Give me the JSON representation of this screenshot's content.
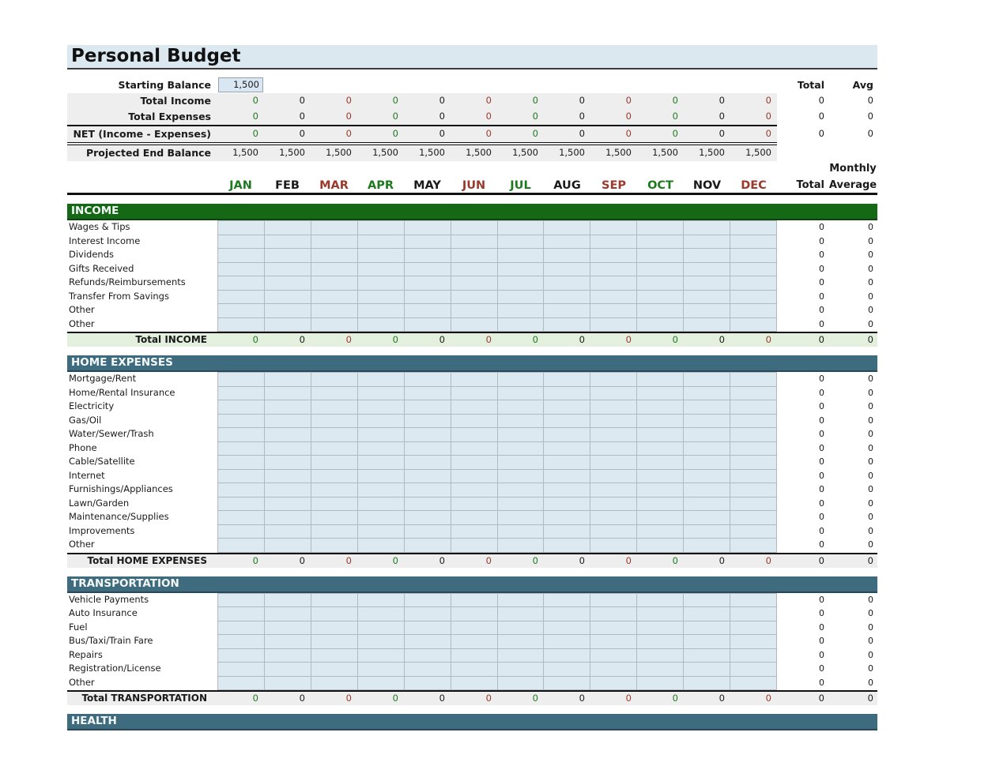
{
  "title": "Personal Budget",
  "colors": {
    "green_text": "#1f7a1f",
    "red_text": "#9a392c",
    "black_text": "#1a1a1a",
    "income_bar": "#156815",
    "expense_bar": "#3e6b7e",
    "title_bg": "#dce8f0",
    "summary_band": "#eeeeee",
    "income_total_band": "#e3f0dd",
    "data_cell": "#dde9f1",
    "input_cell": "#d9e7f3"
  },
  "headers": {
    "total": "Total",
    "avg": "Avg",
    "monthly": "Monthly",
    "total2": "Total",
    "average": "Average"
  },
  "months": [
    {
      "label": "JAN",
      "color": "g"
    },
    {
      "label": "FEB",
      "color": "k"
    },
    {
      "label": "MAR",
      "color": "rr"
    },
    {
      "label": "APR",
      "color": "g"
    },
    {
      "label": "MAY",
      "color": "k"
    },
    {
      "label": "JUN",
      "color": "rr"
    },
    {
      "label": "JUL",
      "color": "g"
    },
    {
      "label": "AUG",
      "color": "k"
    },
    {
      "label": "SEP",
      "color": "rr"
    },
    {
      "label": "OCT",
      "color": "g"
    },
    {
      "label": "NOV",
      "color": "k"
    },
    {
      "label": "DEC",
      "color": "rr"
    }
  ],
  "summary": {
    "starting": {
      "label": "Starting Balance",
      "value": "1,500"
    },
    "rows": [
      {
        "label": "Total Income",
        "values": [
          "0",
          "0",
          "0",
          "0",
          "0",
          "0",
          "0",
          "0",
          "0",
          "0",
          "0",
          "0"
        ],
        "total": "0",
        "avg": "0"
      },
      {
        "label": "Total Expenses",
        "values": [
          "0",
          "0",
          "0",
          "0",
          "0",
          "0",
          "0",
          "0",
          "0",
          "0",
          "0",
          "0"
        ],
        "total": "0",
        "avg": "0"
      },
      {
        "label": "NET (Income - Expenses)",
        "values": [
          "0",
          "0",
          "0",
          "0",
          "0",
          "0",
          "0",
          "0",
          "0",
          "0",
          "0",
          "0"
        ],
        "total": "0",
        "avg": "0"
      }
    ],
    "projected": {
      "label": "Projected End Balance",
      "values": [
        "1,500",
        "1,500",
        "1,500",
        "1,500",
        "1,500",
        "1,500",
        "1,500",
        "1,500",
        "1,500",
        "1,500",
        "1,500",
        "1,500"
      ]
    }
  },
  "sections": [
    {
      "name": "INCOME",
      "style": "green",
      "band": "#e3f0dd",
      "rows": [
        {
          "label": "Wages & Tips",
          "total": "0",
          "avg": "0"
        },
        {
          "label": "Interest Income",
          "total": "0",
          "avg": "0"
        },
        {
          "label": "Dividends",
          "total": "0",
          "avg": "0"
        },
        {
          "label": "Gifts Received",
          "total": "0",
          "avg": "0"
        },
        {
          "label": "Refunds/Reimbursements",
          "total": "0",
          "avg": "0"
        },
        {
          "label": "Transfer From Savings",
          "total": "0",
          "avg": "0"
        },
        {
          "label": "Other",
          "total": "0",
          "avg": "0"
        },
        {
          "label": "Other",
          "total": "0",
          "avg": "0"
        }
      ],
      "total": {
        "label": "Total INCOME",
        "months": [
          "0",
          "0",
          "0",
          "0",
          "0",
          "0",
          "0",
          "0",
          "0",
          "0",
          "0",
          "0"
        ],
        "total": "0",
        "avg": "0"
      }
    },
    {
      "name": "HOME EXPENSES",
      "style": "slate",
      "band": "#eeeeee",
      "rows": [
        {
          "label": "Mortgage/Rent",
          "total": "0",
          "avg": "0"
        },
        {
          "label": "Home/Rental Insurance",
          "total": "0",
          "avg": "0"
        },
        {
          "label": "Electricity",
          "total": "0",
          "avg": "0"
        },
        {
          "label": "Gas/Oil",
          "total": "0",
          "avg": "0"
        },
        {
          "label": "Water/Sewer/Trash",
          "total": "0",
          "avg": "0"
        },
        {
          "label": "Phone",
          "total": "0",
          "avg": "0"
        },
        {
          "label": "Cable/Satellite",
          "total": "0",
          "avg": "0"
        },
        {
          "label": "Internet",
          "total": "0",
          "avg": "0"
        },
        {
          "label": "Furnishings/Appliances",
          "total": "0",
          "avg": "0"
        },
        {
          "label": "Lawn/Garden",
          "total": "0",
          "avg": "0"
        },
        {
          "label": "Maintenance/Supplies",
          "total": "0",
          "avg": "0"
        },
        {
          "label": "Improvements",
          "total": "0",
          "avg": "0"
        },
        {
          "label": "Other",
          "total": "0",
          "avg": "0"
        }
      ],
      "total": {
        "label": "Total HOME EXPENSES",
        "months": [
          "0",
          "0",
          "0",
          "0",
          "0",
          "0",
          "0",
          "0",
          "0",
          "0",
          "0",
          "0"
        ],
        "total": "0",
        "avg": "0"
      }
    },
    {
      "name": "TRANSPORTATION",
      "style": "slate",
      "band": "#eeeeee",
      "rows": [
        {
          "label": "Vehicle Payments",
          "total": "0",
          "avg": "0"
        },
        {
          "label": "Auto Insurance",
          "total": "0",
          "avg": "0"
        },
        {
          "label": "Fuel",
          "total": "0",
          "avg": "0"
        },
        {
          "label": "Bus/Taxi/Train Fare",
          "total": "0",
          "avg": "0"
        },
        {
          "label": "Repairs",
          "total": "0",
          "avg": "0"
        },
        {
          "label": "Registration/License",
          "total": "0",
          "avg": "0"
        },
        {
          "label": "Other",
          "total": "0",
          "avg": "0"
        }
      ],
      "total": {
        "label": "Total TRANSPORTATION",
        "months": [
          "0",
          "0",
          "0",
          "0",
          "0",
          "0",
          "0",
          "0",
          "0",
          "0",
          "0",
          "0"
        ],
        "total": "0",
        "avg": "0"
      }
    },
    {
      "name": "HEALTH",
      "style": "slate",
      "band": "#eeeeee",
      "rows": [],
      "total": null
    }
  ]
}
